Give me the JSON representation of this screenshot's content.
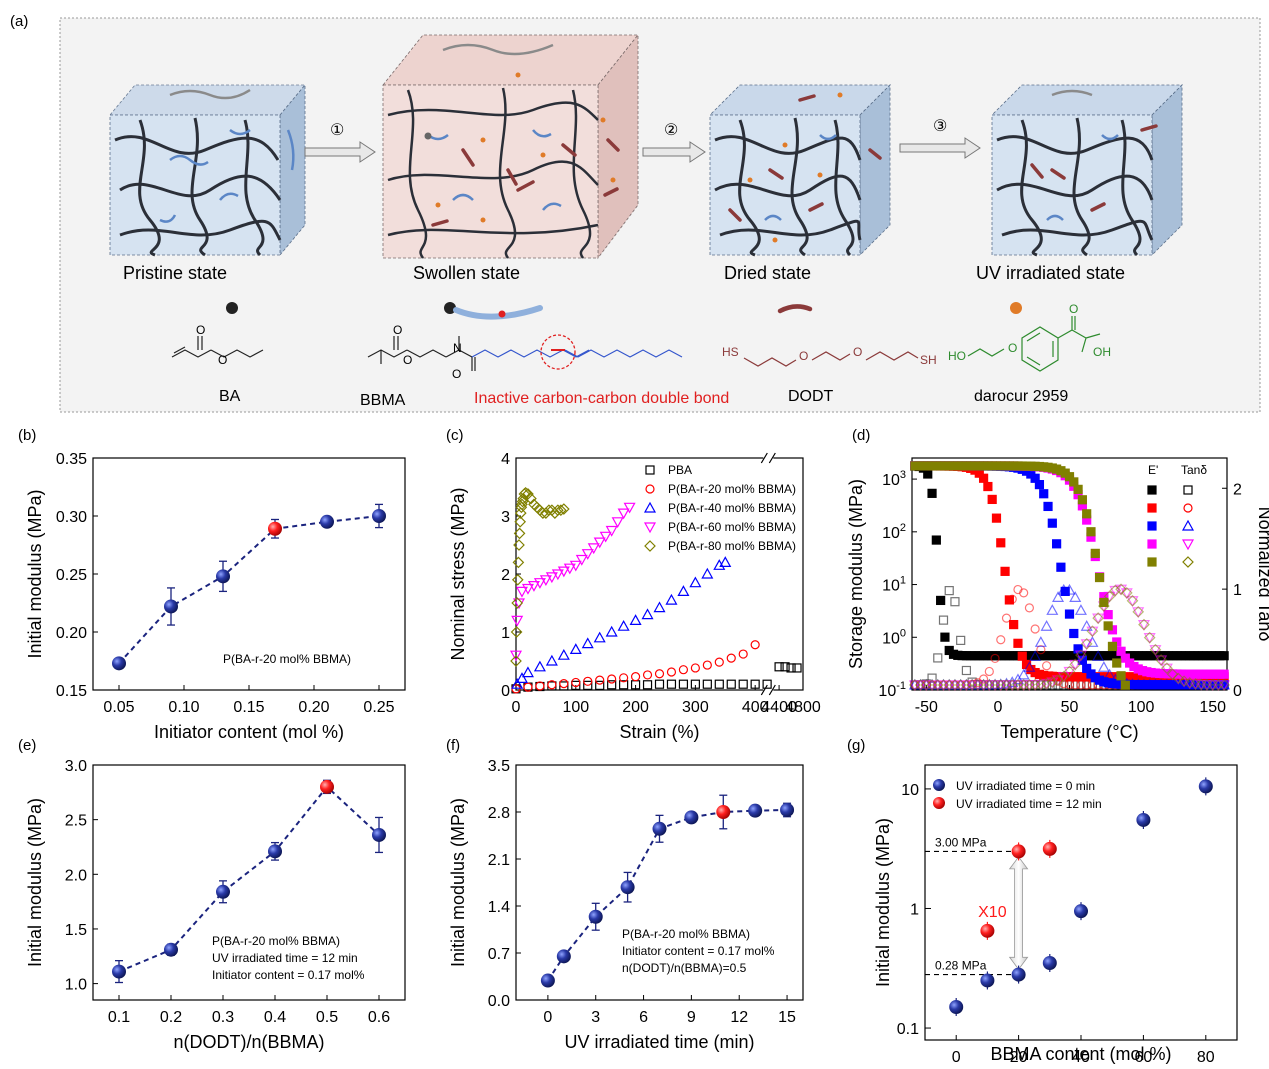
{
  "panel_labels": {
    "a": "(a)",
    "b": "(b)",
    "c": "(c)",
    "d": "(d)",
    "e": "(e)",
    "f": "(f)",
    "g": "(g)"
  },
  "schematic": {
    "states": [
      "Pristine state",
      "Swollen state",
      "Dried state",
      "UV irradiated state"
    ],
    "steps": [
      "①",
      "②",
      "③"
    ],
    "molecules": [
      "BA",
      "BBMA",
      "DODT",
      "darocur 2959"
    ],
    "double_bond_note": "Inactive carbon-carbon double bond",
    "atoms": {
      "O": "O",
      "N": "N",
      "HS": "HS",
      "SH": "SH",
      "HO": "HO",
      "OH": "OH"
    },
    "colors": {
      "network": "#2b2f38",
      "chain_blue": "#5b86c6",
      "chain_grey": "#8a8a8a",
      "dodt": "#8b3a3a",
      "initiator": "#e07b28",
      "red": "#e02020",
      "green": "#2e8b2e",
      "cube_blue": "#c9d8ea",
      "cube_pink": "#edd3cf"
    }
  },
  "chart_data": [
    {
      "id": "b",
      "type": "line+scatter",
      "xlabel": "Initiator content (mol %)",
      "ylabel": "Initial modulus (MPa)",
      "xlim": [
        0.03,
        0.27
      ],
      "ylim": [
        0.15,
        0.35
      ],
      "xticks": [
        {
          "v": 0.05,
          "t": "0.05"
        },
        {
          "v": 0.1,
          "t": "0.10"
        },
        {
          "v": 0.15,
          "t": "0.15"
        },
        {
          "v": 0.2,
          "t": "0.20"
        },
        {
          "v": 0.25,
          "t": "0.25"
        }
      ],
      "yticks": [
        {
          "v": 0.15,
          "t": "0.15"
        },
        {
          "v": 0.2,
          "t": "0.20"
        },
        {
          "v": 0.25,
          "t": "0.25"
        },
        {
          "v": 0.3,
          "t": "0.30"
        },
        {
          "v": 0.35,
          "t": "0.35"
        }
      ],
      "points": [
        [
          0.05,
          0.173,
          0.003,
          false
        ],
        [
          0.09,
          0.222,
          0.016,
          false
        ],
        [
          0.13,
          0.248,
          0.013,
          false
        ],
        [
          0.17,
          0.289,
          0.008,
          true
        ],
        [
          0.21,
          0.295,
          0.004,
          false
        ],
        [
          0.25,
          0.3,
          0.01,
          false
        ]
      ],
      "annotation": [
        "P(BA-r-20 mol% BBMA)"
      ]
    },
    {
      "id": "c",
      "type": "scatter",
      "xlabel": "Strain (%)",
      "ylabel": "Nominal stress (MPa)",
      "xlim": [
        0,
        480
      ],
      "ylim": [
        0,
        4
      ],
      "xticks": [
        {
          "v": 0,
          "t": "0"
        },
        {
          "v": 100,
          "t": "100"
        },
        {
          "v": 200,
          "t": "200"
        },
        {
          "v": 300,
          "t": "300"
        },
        {
          "v": 400,
          "t": "400"
        },
        {
          "v": 440,
          "t": "4400"
        },
        {
          "v": 480,
          "t": "4800"
        }
      ],
      "yticks": [
        {
          "v": 0,
          "t": "0"
        },
        {
          "v": 1,
          "t": "1"
        },
        {
          "v": 2,
          "t": "2"
        },
        {
          "v": 3,
          "t": "3"
        },
        {
          "v": 4,
          "t": "4"
        }
      ],
      "series": [
        {
          "name": "PBA",
          "color": "#000000",
          "marker": "square",
          "x": [
            0,
            20,
            40,
            60,
            80,
            100,
            120,
            140,
            160,
            180,
            200,
            220,
            240,
            260,
            280,
            300,
            320,
            340,
            360,
            380,
            400,
            420,
            440,
            450,
            460,
            470
          ],
          "y": [
            0.02,
            0.05,
            0.06,
            0.07,
            0.07,
            0.08,
            0.08,
            0.08,
            0.09,
            0.09,
            0.09,
            0.09,
            0.1,
            0.1,
            0.1,
            0.1,
            0.1,
            0.1,
            0.1,
            0.1,
            0.1,
            0.1,
            0.4,
            0.4,
            0.38,
            0.38
          ]
        },
        {
          "name": "P(BA-r-20 mol% BBMA)",
          "color": "#ff0000",
          "marker": "circle",
          "x": [
            0,
            20,
            40,
            60,
            80,
            100,
            120,
            140,
            160,
            180,
            200,
            220,
            240,
            260,
            280,
            300,
            320,
            340,
            360,
            380,
            400
          ],
          "y": [
            0.02,
            0.05,
            0.07,
            0.09,
            0.11,
            0.13,
            0.15,
            0.17,
            0.19,
            0.21,
            0.23,
            0.26,
            0.28,
            0.31,
            0.35,
            0.38,
            0.43,
            0.48,
            0.55,
            0.62,
            0.78
          ]
        },
        {
          "name": "P(BA-r-40 mol% BBMA)",
          "color": "#0000ff",
          "marker": "triangle-up",
          "x": [
            2,
            10,
            20,
            40,
            60,
            80,
            100,
            120,
            140,
            160,
            180,
            200,
            220,
            240,
            260,
            280,
            300,
            320,
            340,
            350
          ],
          "y": [
            0.1,
            0.2,
            0.3,
            0.4,
            0.5,
            0.6,
            0.7,
            0.8,
            0.9,
            1.0,
            1.1,
            1.2,
            1.3,
            1.42,
            1.55,
            1.7,
            1.85,
            2.0,
            2.15,
            2.2
          ]
        },
        {
          "name": "P(BA-r-60 mol% BBMA)",
          "color": "#ff00ff",
          "marker": "triangle-down",
          "x": [
            0,
            2,
            5,
            10,
            20,
            30,
            40,
            50,
            60,
            70,
            80,
            90,
            100,
            110,
            120,
            130,
            140,
            150,
            160,
            170,
            180,
            190
          ],
          "y": [
            0.6,
            1.2,
            1.5,
            1.7,
            1.75,
            1.8,
            1.85,
            1.9,
            1.95,
            2.0,
            2.05,
            2.1,
            2.15,
            2.25,
            2.35,
            2.45,
            2.55,
            2.65,
            2.75,
            2.9,
            3.05,
            3.15
          ]
        },
        {
          "name": "P(BA-r-80 mol% BBMA)",
          "color": "#808000",
          "marker": "diamond",
          "x": [
            0,
            1,
            2,
            3,
            4,
            5,
            6,
            7,
            8,
            9,
            10,
            11,
            12,
            14,
            16,
            20,
            25,
            30,
            35,
            40,
            45,
            50,
            55,
            60,
            65,
            70,
            75,
            80
          ],
          "y": [
            0.5,
            1.0,
            1.5,
            1.9,
            2.2,
            2.5,
            2.7,
            2.9,
            3.05,
            3.15,
            3.2,
            3.25,
            3.3,
            3.38,
            3.4,
            3.38,
            3.3,
            3.2,
            3.15,
            3.1,
            3.05,
            3.05,
            3.1,
            3.1,
            3.05,
            3.1,
            3.1,
            3.12
          ]
        }
      ]
    },
    {
      "id": "d",
      "type": "scatter",
      "xlabel": "Temperature (°C)",
      "ylabel": "Storage modulus (MPa)",
      "ylabel_right": "Normalized Tanδ",
      "xlim": [
        -60,
        160
      ],
      "ylim_log": [
        -1,
        3.4
      ],
      "y2lim": [
        0,
        2.3
      ],
      "xticks": [
        {
          "v": -50,
          "t": "-50"
        },
        {
          "v": 0,
          "t": "0"
        },
        {
          "v": 50,
          "t": "50"
        },
        {
          "v": 100,
          "t": "100"
        },
        {
          "v": 150,
          "t": "150"
        }
      ],
      "yticks": [
        {
          "v": -1,
          "t": "10-1"
        },
        {
          "v": 0,
          "t": "100"
        },
        {
          "v": 1,
          "t": "101"
        },
        {
          "v": 2,
          "t": "102"
        },
        {
          "v": 3,
          "t": "103"
        }
      ],
      "y2ticks": [
        {
          "v": 0,
          "t": "0"
        },
        {
          "v": 1,
          "t": "1"
        },
        {
          "v": 2,
          "t": "2"
        }
      ],
      "legend_header": [
        "E'",
        "Tanδ"
      ],
      "series": [
        {
          "name": "PBA",
          "color": "#000000",
          "tan_marker": "square",
          "e_tg": -42,
          "e_w": 5,
          "e_plat": -0.35,
          "tan_peak": -33,
          "tan_w": 8
        },
        {
          "name": "P(BA-r-20 mol% BBMA)",
          "color": "#ff0000",
          "tan_marker": "circle",
          "e_tg": 5,
          "e_w": 12,
          "e_plat": -0.75,
          "tan_peak": 15,
          "tan_w": 15
        },
        {
          "name": "P(BA-r-40 mol% BBMA)",
          "color": "#0000ff",
          "tan_marker": "triangle-up",
          "e_tg": 45,
          "e_w": 15,
          "e_plat": -0.9,
          "tan_peak": 48,
          "tan_w": 20
        },
        {
          "name": "P(BA-r-60 mol% BBMA)",
          "color": "#ff00ff",
          "tan_marker": "triangle-down",
          "e_tg": 70,
          "e_w": 17,
          "e_plat": -0.7,
          "tan_peak": 85,
          "tan_w": 25
        },
        {
          "name": "P(BA-r-80 mol% BBMA)",
          "color": "#808000",
          "tan_marker": "diamond",
          "e_tg": 72,
          "e_w": 16,
          "e_plat": -1.3,
          "tan_peak": 85,
          "tan_w": 25
        }
      ]
    },
    {
      "id": "e",
      "type": "line+scatter",
      "xlabel": "n(DODT)/n(BBMA)",
      "ylabel": "Initial modulus (MPa)",
      "xlim": [
        0.05,
        0.65
      ],
      "ylim": [
        0.85,
        3.0
      ],
      "xticks": [
        {
          "v": 0.1,
          "t": "0.1"
        },
        {
          "v": 0.2,
          "t": "0.2"
        },
        {
          "v": 0.3,
          "t": "0.3"
        },
        {
          "v": 0.4,
          "t": "0.4"
        },
        {
          "v": 0.5,
          "t": "0.5"
        },
        {
          "v": 0.6,
          "t": "0.6"
        }
      ],
      "yticks": [
        {
          "v": 1.0,
          "t": "1.0"
        },
        {
          "v": 1.5,
          "t": "1.5"
        },
        {
          "v": 2.0,
          "t": "2.0"
        },
        {
          "v": 2.5,
          "t": "2.5"
        },
        {
          "v": 3.0,
          "t": "3.0"
        }
      ],
      "points": [
        [
          0.1,
          1.11,
          0.1,
          false
        ],
        [
          0.2,
          1.31,
          0.05,
          false
        ],
        [
          0.3,
          1.84,
          0.1,
          false
        ],
        [
          0.4,
          2.21,
          0.08,
          false
        ],
        [
          0.5,
          2.8,
          0.06,
          true
        ],
        [
          0.6,
          2.36,
          0.16,
          false
        ]
      ],
      "annotation": [
        "P(BA-r-20 mol% BBMA)",
        "UV irradiated time = 12 min",
        "Initiator content = 0.17 mol%"
      ]
    },
    {
      "id": "f",
      "type": "line+scatter",
      "xlabel": "UV irradiated time (min)",
      "ylabel": "Initial modulus (MPa)",
      "xlim": [
        -2,
        16
      ],
      "ylim": [
        0,
        3.5
      ],
      "xticks": [
        {
          "v": 0,
          "t": "0"
        },
        {
          "v": 3,
          "t": "3"
        },
        {
          "v": 6,
          "t": "6"
        },
        {
          "v": 9,
          "t": "9"
        },
        {
          "v": 12,
          "t": "12"
        },
        {
          "v": 15,
          "t": "15"
        }
      ],
      "yticks": [
        {
          "v": 0.0,
          "t": "0.0"
        },
        {
          "v": 0.7,
          "t": "0.7"
        },
        {
          "v": 1.4,
          "t": "1.4"
        },
        {
          "v": 2.1,
          "t": "2.1"
        },
        {
          "v": 2.8,
          "t": "2.8"
        },
        {
          "v": 3.5,
          "t": "3.5"
        }
      ],
      "points": [
        [
          0,
          0.29,
          0.05,
          false
        ],
        [
          1,
          0.65,
          0.05,
          false
        ],
        [
          3,
          1.24,
          0.2,
          false
        ],
        [
          5,
          1.68,
          0.22,
          false
        ],
        [
          7,
          2.55,
          0.2,
          false
        ],
        [
          9,
          2.72,
          0.05,
          false
        ],
        [
          11,
          2.8,
          0.25,
          true
        ],
        [
          13,
          2.82,
          0.06,
          false
        ],
        [
          15,
          2.83,
          0.1,
          false
        ]
      ],
      "annotation": [
        "P(BA-r-20 mol% BBMA)",
        "Initiator content = 0.17 mol%",
        "n(DODT)/n(BBMA)=0.5"
      ]
    },
    {
      "id": "g",
      "type": "scatter",
      "xlabel": "BBMA content (mol %)",
      "ylabel": "Initial modulus (MPa)",
      "xlim": [
        -10,
        90
      ],
      "ylim_log": [
        -1.1,
        1.2
      ],
      "xticks": [
        {
          "v": 0,
          "t": "0"
        },
        {
          "v": 20,
          "t": "20"
        },
        {
          "v": 40,
          "t": "40"
        },
        {
          "v": 60,
          "t": "60"
        },
        {
          "v": 80,
          "t": "80"
        }
      ],
      "yticks": [
        {
          "v": -1,
          "t": "0.1"
        },
        {
          "v": 0,
          "t": "1"
        },
        {
          "v": 1,
          "t": "10"
        }
      ],
      "series": [
        {
          "name": "UV irradiated time = 0 min",
          "color": "#1a237e",
          "points": [
            [
              0,
              0.15
            ],
            [
              10,
              0.25
            ],
            [
              20,
              0.28
            ],
            [
              30,
              0.35
            ],
            [
              40,
              0.95
            ],
            [
              60,
              5.5
            ],
            [
              80,
              10.5
            ]
          ]
        },
        {
          "name": "UV irradiated time = 12 min",
          "color": "#ff1a1a",
          "points": [
            [
              10,
              0.65
            ],
            [
              20,
              3.0
            ],
            [
              30,
              3.15
            ]
          ]
        }
      ],
      "ref_lines": [
        {
          "v": 3.0,
          "t": "3.00 MPa"
        },
        {
          "v": 0.28,
          "t": "0.28 MPa"
        }
      ],
      "arrow_label": "X10"
    }
  ]
}
